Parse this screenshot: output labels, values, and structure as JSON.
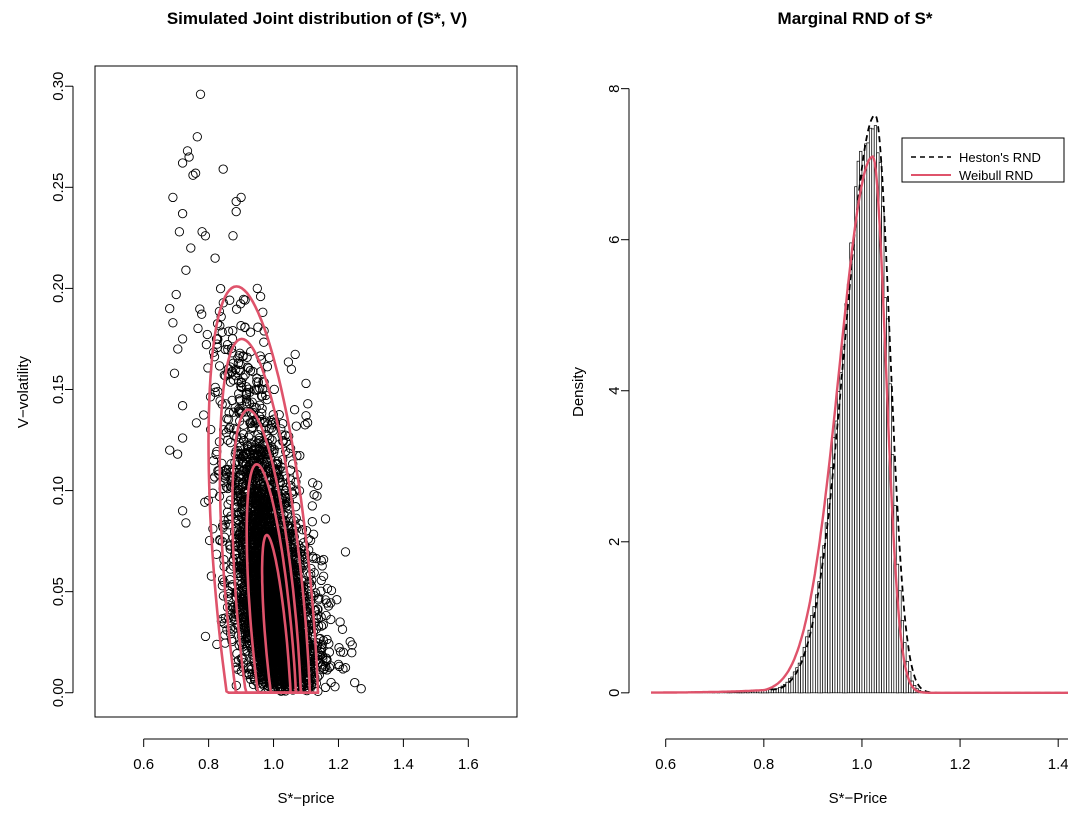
{
  "chart_data": [
    {
      "type": "scatter",
      "title": "Simulated Joint distribution of (S*, V)",
      "xlabel": "S*−price",
      "ylabel": "V−volatility",
      "xlim": [
        0.45,
        1.75
      ],
      "ylim": [
        -0.012,
        0.31
      ],
      "xticks": [
        "0.6",
        "0.8",
        "1.0",
        "1.2",
        "1.4",
        "1.6"
      ],
      "xtick_values": [
        0.6,
        0.8,
        1.0,
        1.2,
        1.4,
        1.6
      ],
      "yticks": [
        "0.00",
        "0.05",
        "0.10",
        "0.15",
        "0.20",
        "0.25",
        "0.30"
      ],
      "ytick_values": [
        0.0,
        0.05,
        0.1,
        0.15,
        0.2,
        0.25,
        0.3
      ],
      "points_bulk": {
        "count": 4000,
        "s_mean": 1.0,
        "s_sd": 0.07,
        "v_shape": 2.0,
        "v_scale": 0.028,
        "v_min": 0.0,
        "correlation_sign": "negative"
      },
      "points_outliers": [
        [
          0.775,
          0.296
        ],
        [
          0.765,
          0.275
        ],
        [
          0.735,
          0.268
        ],
        [
          0.74,
          0.265
        ],
        [
          0.72,
          0.262
        ],
        [
          0.845,
          0.259
        ],
        [
          0.76,
          0.257
        ],
        [
          0.752,
          0.256
        ],
        [
          0.69,
          0.245
        ],
        [
          0.885,
          0.243
        ],
        [
          0.9,
          0.245
        ],
        [
          0.885,
          0.238
        ],
        [
          0.72,
          0.237
        ],
        [
          0.71,
          0.228
        ],
        [
          0.78,
          0.228
        ],
        [
          0.745,
          0.22
        ],
        [
          0.79,
          0.226
        ],
        [
          0.875,
          0.226
        ],
        [
          0.82,
          0.215
        ],
        [
          0.73,
          0.209
        ],
        [
          0.7,
          0.197
        ],
        [
          0.68,
          0.19
        ],
        [
          0.69,
          0.183
        ],
        [
          0.72,
          0.175
        ],
        [
          0.705,
          0.17
        ],
        [
          0.695,
          0.158
        ],
        [
          0.72,
          0.142
        ],
        [
          0.72,
          0.126
        ],
        [
          0.68,
          0.12
        ],
        [
          0.72,
          0.09
        ],
        [
          0.73,
          0.084
        ],
        [
          0.95,
          0.2
        ],
        [
          0.96,
          0.196
        ],
        [
          1.055,
          0.16
        ],
        [
          1.1,
          0.153
        ],
        [
          1.065,
          0.14
        ],
        [
          1.1,
          0.137
        ],
        [
          1.125,
          0.098
        ],
        [
          1.16,
          0.086
        ],
        [
          1.195,
          0.046
        ],
        [
          1.205,
          0.035
        ],
        [
          1.27,
          0.002
        ],
        [
          1.25,
          0.005
        ],
        [
          1.215,
          0.02
        ],
        [
          1.2,
          0.014
        ]
      ],
      "contours": [
        {
          "cx": 1.01,
          "cy": 0.022,
          "sx": 0.033,
          "sy": 0.056
        },
        {
          "cx": 0.995,
          "cy": 0.028,
          "sx": 0.062,
          "sy": 0.085
        },
        {
          "cx": 0.98,
          "cy": 0.035,
          "sx": 0.09,
          "sy": 0.105
        },
        {
          "cx": 0.975,
          "cy": 0.042,
          "sx": 0.12,
          "sy": 0.133
        },
        {
          "cx": 0.97,
          "cy": 0.048,
          "sx": 0.148,
          "sy": 0.153
        }
      ],
      "contour_color": "#DF536B",
      "point_color": "#000000"
    },
    {
      "type": "histogram",
      "title": "Marginal RND of S*",
      "xlabel": "S*−Price",
      "ylabel": "Density",
      "xlim": [
        0.57,
        1.42
      ],
      "ylim": [
        -0.32,
        8.3
      ],
      "xticks": [
        "0.6",
        "0.8",
        "1.0",
        "1.2",
        "1.4"
      ],
      "xtick_values": [
        0.6,
        0.8,
        1.0,
        1.2,
        1.4
      ],
      "yticks": [
        "0",
        "2",
        "4",
        "6",
        "8"
      ],
      "ytick_values": [
        0,
        2,
        4,
        6,
        8
      ],
      "bin_width": 0.005,
      "histogram": {
        "mode": 1.025,
        "left_sd": 0.063,
        "right_sd": 0.028,
        "peak": 7.6,
        "range": [
          0.65,
          1.16
        ],
        "noise": 0.06
      },
      "series": [
        {
          "name": "Heston's RND",
          "style": "dashed",
          "color": "#000000",
          "mode": 1.027,
          "left_sd": 0.062,
          "right_sd": 0.03,
          "peak": 7.65
        },
        {
          "name": "Weibull RND",
          "style": "solid",
          "color": "#DF536B",
          "mode": 1.022,
          "left_sd": 0.068,
          "right_sd": 0.027,
          "peak": 7.1
        }
      ],
      "legend": {
        "position": "top-right",
        "entries": [
          "Heston's RND",
          "Weibull RND"
        ]
      }
    }
  ]
}
